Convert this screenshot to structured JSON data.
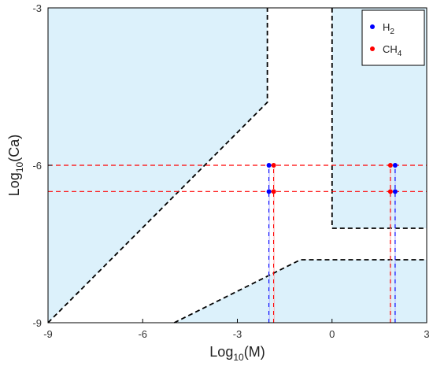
{
  "chart_data": {
    "type": "scatter",
    "xlabel": {
      "base": "Log",
      "sub": "10",
      "rest": "(M)"
    },
    "ylabel": {
      "base": "Log",
      "sub": "10",
      "rest": "(Ca)"
    },
    "xlim": [
      -9,
      3
    ],
    "ylim": [
      -9,
      -3
    ],
    "xticks": [
      {
        "value": -9,
        "label": "-9"
      },
      {
        "value": -6,
        "label": "-6"
      },
      {
        "value": -3,
        "label": "-3"
      },
      {
        "value": 0,
        "label": "0"
      },
      {
        "value": 3,
        "label": "3"
      }
    ],
    "yticks": [
      {
        "value": -9,
        "label": "-9"
      },
      {
        "value": -6,
        "label": "-6"
      },
      {
        "value": -3,
        "label": "-3"
      }
    ],
    "grid": false,
    "legend_position": "top-right",
    "shaded_region_color": "#dcf1fb",
    "shaded_regions": [
      {
        "points": [
          [
            -9,
            -9
          ],
          [
            -9,
            -3
          ],
          [
            -2.05,
            -3
          ],
          [
            -2.05,
            -4.8
          ]
        ]
      },
      {
        "points": [
          [
            0,
            -3
          ],
          [
            3,
            -3
          ],
          [
            3,
            -7.2
          ],
          [
            0,
            -7.2
          ]
        ]
      },
      {
        "points": [
          [
            -5,
            -9
          ],
          [
            -1,
            -7.8
          ],
          [
            3,
            -7.8
          ],
          [
            3,
            -9
          ]
        ]
      }
    ],
    "boundary_lines": [
      {
        "points": [
          [
            -9,
            -9
          ],
          [
            -2.05,
            -4.8
          ],
          [
            -2.05,
            -3
          ]
        ],
        "color": "#000000",
        "style": "dashed"
      },
      {
        "points": [
          [
            0,
            -3
          ],
          [
            0,
            -7.2
          ],
          [
            3,
            -7.2
          ]
        ],
        "color": "#000000",
        "style": "dashed"
      },
      {
        "points": [
          [
            -5,
            -9
          ],
          [
            -1,
            -7.8
          ],
          [
            3,
            -7.8
          ]
        ],
        "color": "#000000",
        "style": "dashed"
      }
    ],
    "reference_lines": [
      {
        "orientation": "horizontal",
        "value": -6,
        "color": "#ff0000",
        "style": "dashed"
      },
      {
        "orientation": "horizontal",
        "value": -6.5,
        "color": "#ff0000",
        "style": "dashed"
      }
    ],
    "drop_lines": [
      {
        "x": -2,
        "from_y": -6,
        "color": "#0000ff"
      },
      {
        "x": -1.85,
        "from_y": -6,
        "color": "#ff0000"
      },
      {
        "x": 1.85,
        "from_y": -6,
        "color": "#ff0000"
      },
      {
        "x": 2,
        "from_y": -6,
        "color": "#0000ff"
      }
    ],
    "series": [
      {
        "name": "H",
        "subscript": "2",
        "color": "#0000ff",
        "x": [
          -2,
          -2,
          2,
          2
        ],
        "y": [
          -6,
          -6.5,
          -6,
          -6.5
        ]
      },
      {
        "name": "CH",
        "subscript": "4",
        "color": "#ff0000",
        "x": [
          -1.85,
          -1.85,
          1.85,
          1.85
        ],
        "y": [
          -6,
          -6.5,
          -6,
          -6.5
        ]
      }
    ]
  }
}
